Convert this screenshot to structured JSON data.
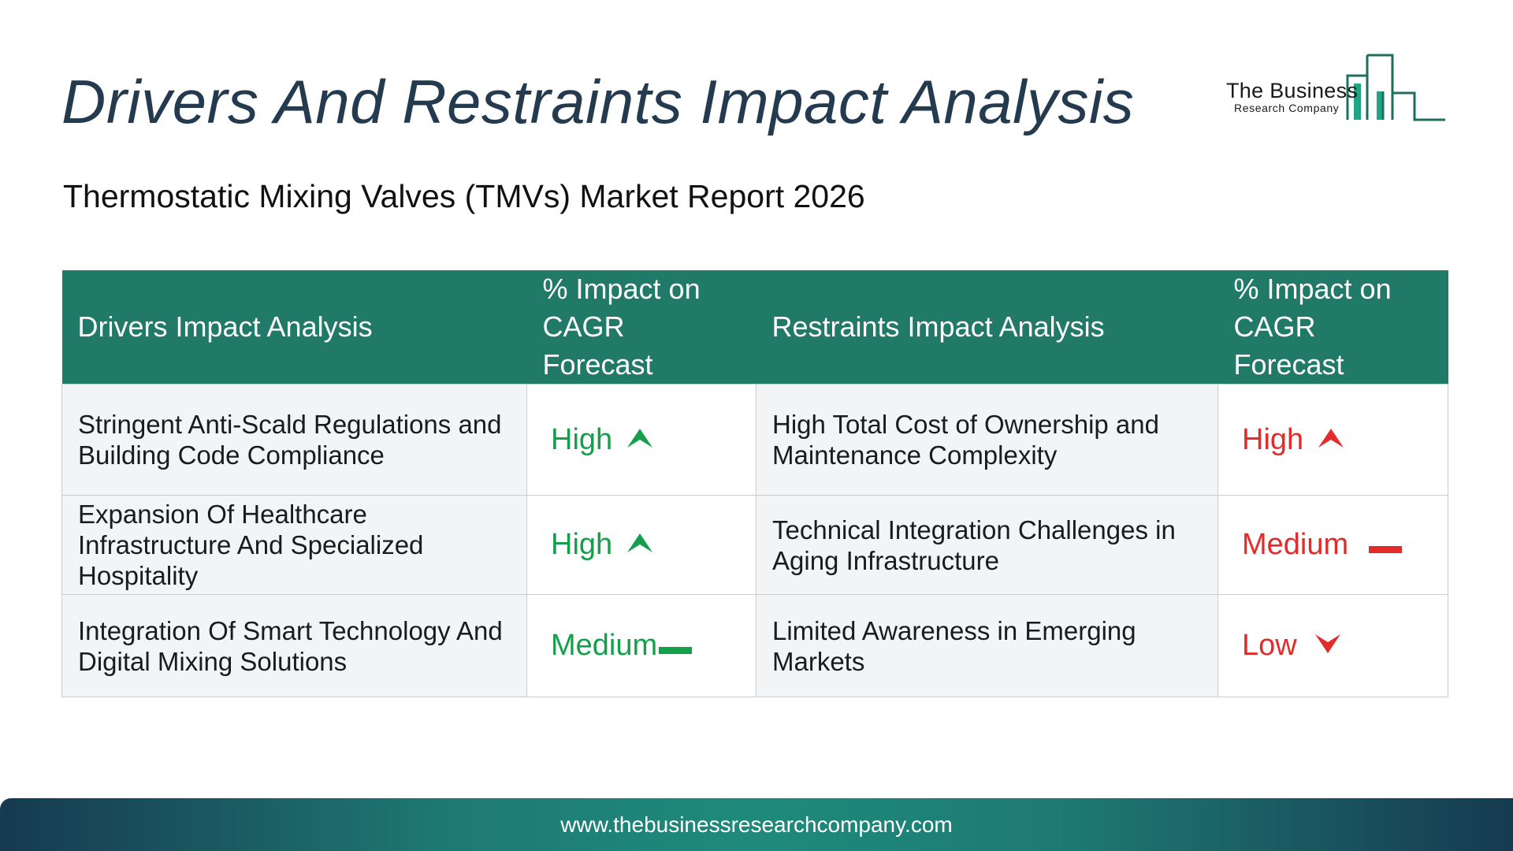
{
  "title": "Drivers And Restraints Impact Analysis",
  "subtitle": "Thermostatic Mixing Valves (TMVs) Market Report 2026",
  "logo": {
    "name": "The Business",
    "sub": "Research Company"
  },
  "table": {
    "headers": {
      "drivers": "Drivers Impact Analysis",
      "drivers_impact": "% Impact on CAGR Forecast",
      "restraints": "Restraints Impact Analysis",
      "restraints_impact": "% Impact on CAGR Forecast"
    },
    "rows": [
      {
        "driver": "Stringent Anti-Scald Regulations and Building Code Compliance",
        "driver_impact": "High",
        "driver_icon": "arrow-up-icon",
        "restraint": "High Total Cost of Ownership and Maintenance Complexity",
        "restraint_impact": "High",
        "restraint_icon": "arrow-up-icon"
      },
      {
        "driver": "Expansion Of Healthcare Infrastructure And Specialized Hospitality",
        "driver_impact": "High",
        "driver_icon": "arrow-up-icon",
        "restraint": "Technical Integration Challenges in Aging Infrastructure",
        "restraint_impact": "Medium",
        "restraint_icon": "dash-icon"
      },
      {
        "driver": "Integration Of Smart Technology And Digital Mixing Solutions",
        "driver_impact": "Medium",
        "driver_icon": "dash-icon",
        "restraint": "Limited Awareness in Emerging Markets",
        "restraint_impact": "Low",
        "restraint_icon": "arrow-down-icon"
      }
    ]
  },
  "colors": {
    "header_bg": "#217a68",
    "driver_level": "#14a04a",
    "restraint_level": "#e32b2b",
    "title": "#243a4e"
  },
  "footer": {
    "url": "www.thebusinessresearchcompany.com"
  }
}
